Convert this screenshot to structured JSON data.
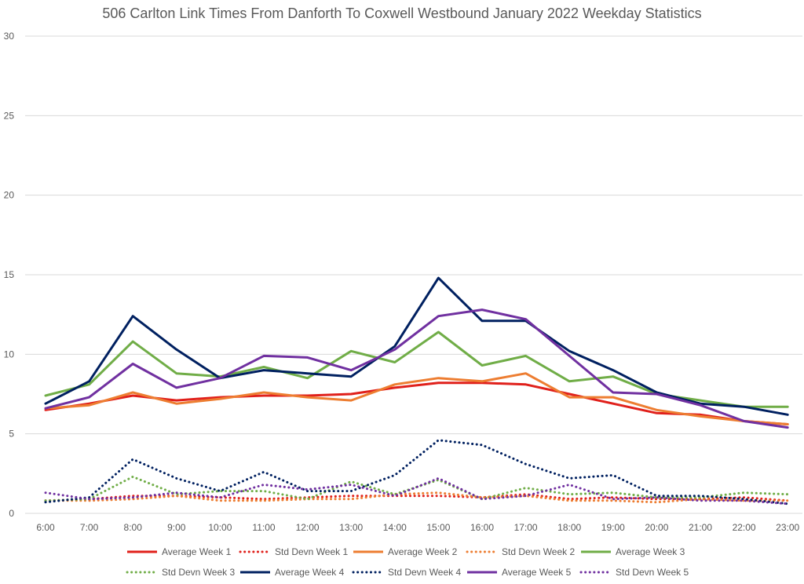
{
  "chart_data": {
    "type": "line",
    "title": "506 Carlton Link Times From Danforth To Coxwell Westbound January 2022 Weekday Statistics",
    "xlabel": "",
    "ylabel": "",
    "ylim": [
      0,
      30
    ],
    "yticks": [
      "0",
      "5",
      "10",
      "15",
      "20",
      "25",
      "30"
    ],
    "grid": true,
    "legend_position": "bottom",
    "categories": [
      "6:00",
      "7:00",
      "8:00",
      "9:00",
      "10:00",
      "11:00",
      "12:00",
      "13:00",
      "14:00",
      "15:00",
      "16:00",
      "17:00",
      "18:00",
      "19:00",
      "20:00",
      "21:00",
      "22:00",
      "23:00"
    ],
    "series": [
      {
        "name": "Average Week 1",
        "color": "#e0201b",
        "dash": "solid",
        "values": [
          6.5,
          6.9,
          7.4,
          7.1,
          7.3,
          7.4,
          7.4,
          7.5,
          7.9,
          8.2,
          8.2,
          8.1,
          7.5,
          6.9,
          6.3,
          6.2,
          5.8,
          5.6
        ]
      },
      {
        "name": "Std Devn Week 1",
        "color": "#e0201b",
        "dash": "dotted",
        "values": [
          0.8,
          0.9,
          1.1,
          1.1,
          1.0,
          0.9,
          1.0,
          1.1,
          1.1,
          1.1,
          1.0,
          1.2,
          0.9,
          1.0,
          0.9,
          0.9,
          1.0,
          0.8
        ]
      },
      {
        "name": "Average Week 2",
        "color": "#ed7d31",
        "dash": "solid",
        "values": [
          6.6,
          6.8,
          7.6,
          6.9,
          7.2,
          7.6,
          7.3,
          7.1,
          8.1,
          8.5,
          8.3,
          8.8,
          7.3,
          7.3,
          6.5,
          6.1,
          5.8,
          5.6
        ]
      },
      {
        "name": "Std Devn Week 2",
        "color": "#ed7d31",
        "dash": "dotted",
        "values": [
          0.8,
          0.8,
          0.9,
          1.1,
          0.8,
          0.8,
          0.9,
          0.9,
          1.2,
          1.3,
          1.0,
          1.1,
          0.8,
          0.8,
          0.7,
          0.9,
          0.8,
          0.8
        ]
      },
      {
        "name": "Average Week 3",
        "color": "#70ad47",
        "dash": "solid",
        "values": [
          7.4,
          8.1,
          10.8,
          8.8,
          8.6,
          9.2,
          8.5,
          10.2,
          9.5,
          11.4,
          9.3,
          9.9,
          8.3,
          8.6,
          7.5,
          7.1,
          6.7,
          6.7
        ]
      },
      {
        "name": "Std Devn Week 3",
        "color": "#70ad47",
        "dash": "dotted",
        "values": [
          0.8,
          0.9,
          2.3,
          1.2,
          1.4,
          1.4,
          0.9,
          2.0,
          1.2,
          2.1,
          0.9,
          1.6,
          1.2,
          1.3,
          1.0,
          1.0,
          1.3,
          1.2
        ]
      },
      {
        "name": "Average Week 4",
        "color": "#002060",
        "dash": "solid",
        "values": [
          6.9,
          8.3,
          12.4,
          10.3,
          8.5,
          9.0,
          8.8,
          8.6,
          10.5,
          14.8,
          12.1,
          12.1,
          10.2,
          9.0,
          7.6,
          6.9,
          6.7,
          6.2
        ]
      },
      {
        "name": "Std Devn Week 4",
        "color": "#002060",
        "dash": "dotted",
        "values": [
          0.7,
          1.0,
          3.4,
          2.2,
          1.4,
          2.6,
          1.4,
          1.4,
          2.4,
          4.6,
          4.3,
          3.1,
          2.2,
          2.4,
          1.1,
          1.1,
          0.9,
          0.6
        ]
      },
      {
        "name": "Average Week 5",
        "color": "#7030a0",
        "dash": "solid",
        "values": [
          6.6,
          7.3,
          9.4,
          7.9,
          8.5,
          9.9,
          9.8,
          9.0,
          10.3,
          12.4,
          12.8,
          12.2,
          9.9,
          7.6,
          7.5,
          6.8,
          5.8,
          5.4
        ]
      },
      {
        "name": "Std Devn Week 5",
        "color": "#7030a0",
        "dash": "dotted",
        "values": [
          1.3,
          0.9,
          1.0,
          1.3,
          1.0,
          1.8,
          1.5,
          1.8,
          1.1,
          2.2,
          0.9,
          1.1,
          1.8,
          0.9,
          1.0,
          0.8,
          0.8,
          0.6
        ]
      }
    ]
  }
}
